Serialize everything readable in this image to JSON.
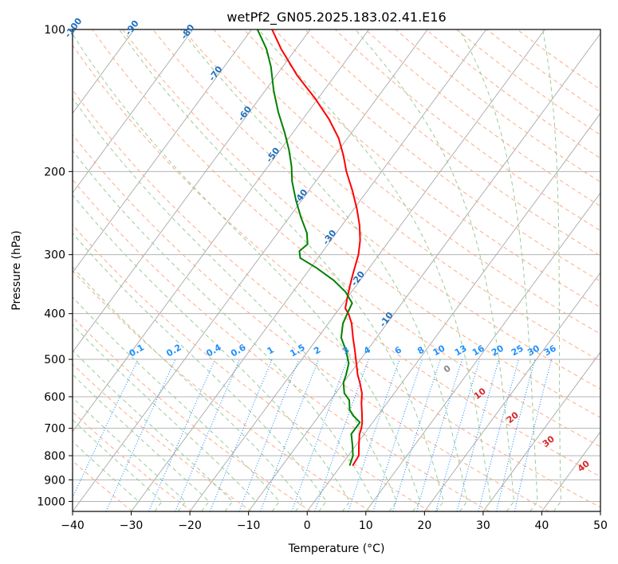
{
  "chart_data": {
    "type": "line",
    "title": "wetPf2_GN05.2025.183.02.41.E16",
    "xlabel": "Temperature (°C)",
    "ylabel": "Pressure (hPa)",
    "xlim": [
      -40,
      50
    ],
    "ylim": [
      1050,
      100
    ],
    "y_scale": "log",
    "x_ticks": [
      -40,
      -30,
      -20,
      -10,
      0,
      10,
      20,
      30,
      40,
      50
    ],
    "y_ticks": [
      100,
      200,
      300,
      400,
      500,
      600,
      700,
      800,
      900,
      1000
    ],
    "grid": true,
    "colors": {
      "temperature": "#ff0000",
      "dewpoint": "#008000",
      "isotherm": "#a8a8a8",
      "dry_adiabat": "#ffaa88",
      "moist_adiabat": "#99cc99",
      "mixing_ratio": "#1e90ff",
      "isotherm_label": "#1f6fbf",
      "dry_adiabat_label": "#d62728"
    },
    "series": [
      {
        "key": "temperature",
        "pressure": [
          840,
          800,
          760,
          720,
          700,
          680,
          650,
          620,
          590,
          560,
          540,
          510,
          480,
          450,
          420,
          400,
          390,
          370,
          350,
          330,
          300,
          280,
          260,
          240,
          220,
          200,
          185,
          170,
          155,
          140,
          125,
          110,
          100
        ],
        "values": [
          2.0,
          1.8,
          0.5,
          -0.8,
          -1.2,
          -1.8,
          -3.0,
          -4.3,
          -5.5,
          -7.2,
          -8.5,
          -10.2,
          -12.0,
          -14.0,
          -16.0,
          -17.8,
          -19.0,
          -20.0,
          -21.0,
          -22.0,
          -23.5,
          -25.0,
          -27.0,
          -29.5,
          -32.5,
          -36.0,
          -38.5,
          -41.5,
          -45.5,
          -50.5,
          -56.5,
          -62.5,
          -66.5
        ]
      },
      {
        "key": "dewpoint",
        "pressure": [
          840,
          800,
          760,
          720,
          700,
          680,
          660,
          640,
          610,
          590,
          560,
          540,
          510,
          480,
          450,
          420,
          400,
          380,
          360,
          340,
          320,
          305,
          295,
          285,
          270,
          250,
          230,
          210,
          195,
          180,
          165,
          150,
          135,
          120,
          110,
          100
        ],
        "values": [
          1.5,
          0.8,
          -0.6,
          -2.2,
          -2.2,
          -2.2,
          -4.0,
          -5.5,
          -6.8,
          -8.5,
          -10.0,
          -10.5,
          -11.5,
          -13.5,
          -16.0,
          -17.5,
          -18.0,
          -18.5,
          -21.0,
          -24.5,
          -29.0,
          -33.0,
          -34.0,
          -33.5,
          -35.0,
          -38.0,
          -41.0,
          -44.0,
          -46.0,
          -48.5,
          -51.5,
          -55.0,
          -58.5,
          -62.0,
          -65.0,
          -69.0
        ]
      }
    ],
    "isotherm_labels": [
      "-100",
      "-90",
      "-80",
      "-70",
      "-60",
      "-50",
      "-40",
      "-30",
      "-20",
      "-10"
    ],
    "mixing_ratio_labels": [
      "0.1",
      "0.2",
      "0.4",
      "0.6",
      "1",
      "1.5",
      "2",
      "3",
      "4",
      "6",
      "8",
      "10",
      "13",
      "16",
      "20",
      "25",
      "30",
      "36"
    ],
    "dry_adiabat_labels": [
      "0",
      "10",
      "20",
      "30",
      "40"
    ]
  }
}
